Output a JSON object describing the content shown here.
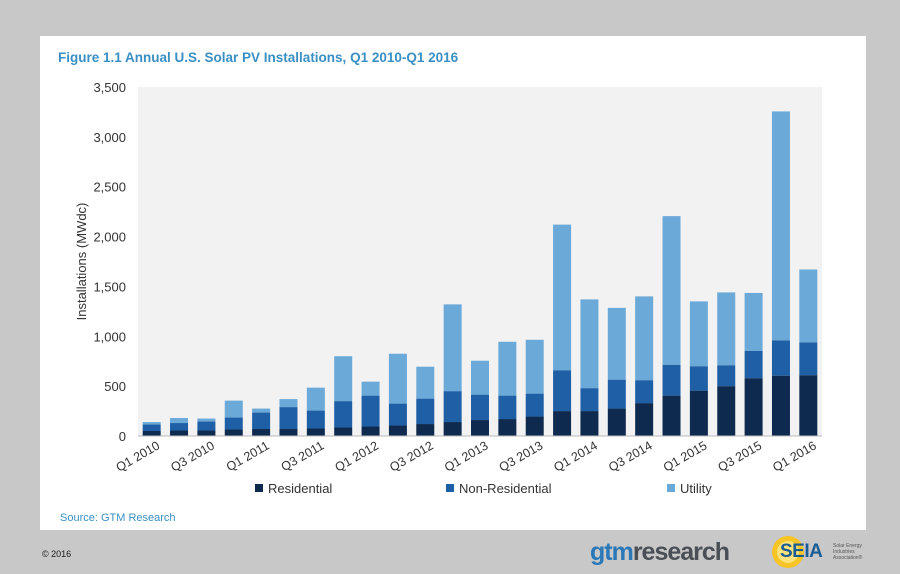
{
  "title": "Figure 1.1 Annual U.S. Solar PV Installations, Q1 2010-Q1 2016",
  "source": "Source: GTM Research",
  "copyright": "© 2016",
  "logos": {
    "gtm_part1": "gtm",
    "gtm_part2": "research",
    "seia": "SEIA",
    "seia_sub": "Solar Energy Industries Association®"
  },
  "colors": {
    "residential": "#0e2a4f",
    "non_residential": "#1f5fa6",
    "utility": "#6aa9d8",
    "plot_bg": "#f2f2f2",
    "title": "#3a8fc4"
  },
  "chart_data": {
    "type": "bar",
    "stacked": true,
    "title": "Figure 1.1 Annual U.S. Solar PV Installations, Q1 2010-Q1 2016",
    "ylabel": "Installations (MWdc)",
    "xlabel": "",
    "ylim": [
      0,
      3500
    ],
    "yticks": [
      0,
      500,
      1000,
      1500,
      2000,
      2500,
      3000,
      3500
    ],
    "ytick_labels": [
      "0",
      "500",
      "1,000",
      "1,500",
      "2,000",
      "2,500",
      "3,000",
      "3,500"
    ],
    "grid": false,
    "legend": "bottom",
    "categories": [
      "Q1 2010",
      "Q2 2010",
      "Q3 2010",
      "Q4 2010",
      "Q1 2011",
      "Q2 2011",
      "Q3 2011",
      "Q4 2011",
      "Q1 2012",
      "Q2 2012",
      "Q3 2012",
      "Q4 2012",
      "Q1 2013",
      "Q2 2013",
      "Q3 2013",
      "Q4 2013",
      "Q1 2014",
      "Q2 2014",
      "Q3 2014",
      "Q4 2014",
      "Q1 2015",
      "Q2 2015",
      "Q3 2015",
      "Q4 2015",
      "Q1 2016"
    ],
    "xtick_labels": [
      "Q1 2010",
      "Q3 2010",
      "Q1 2011",
      "Q3 2011",
      "Q1 2012",
      "Q3 2012",
      "Q1 2013",
      "Q3 2013",
      "Q1 2014",
      "Q3 2014",
      "Q1 2015",
      "Q3 2015",
      "Q1 2016"
    ],
    "series": [
      {
        "name": "Residential",
        "values": [
          50,
          55,
          55,
          65,
          70,
          70,
          75,
          85,
          95,
          105,
          120,
          140,
          160,
          170,
          195,
          250,
          250,
          275,
          330,
          405,
          455,
          500,
          580,
          605,
          610
        ]
      },
      {
        "name": "Non-Residential",
        "values": [
          65,
          75,
          90,
          120,
          165,
          220,
          180,
          265,
          310,
          220,
          255,
          310,
          255,
          235,
          230,
          410,
          230,
          290,
          230,
          310,
          245,
          210,
          275,
          355,
          330
        ]
      },
      {
        "name": "Utility",
        "values": [
          25,
          50,
          30,
          170,
          40,
          80,
          230,
          450,
          140,
          500,
          320,
          870,
          340,
          540,
          540,
          1460,
          890,
          720,
          840,
          1490,
          650,
          730,
          580,
          2295,
          730
        ]
      }
    ]
  }
}
